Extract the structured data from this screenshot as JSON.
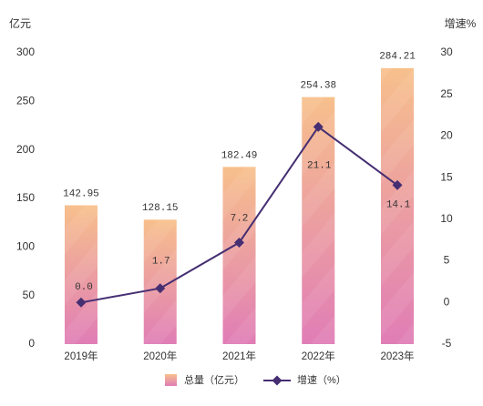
{
  "chart_data": {
    "type": "bar",
    "categories": [
      "2019年",
      "2020年",
      "2021年",
      "2022年",
      "2023年"
    ],
    "series": [
      {
        "name": "总量（亿元）",
        "type": "bar",
        "y_axis": "left",
        "values": [
          142.95,
          128.15,
          182.49,
          254.38,
          284.21
        ]
      },
      {
        "name": "增速（%）",
        "type": "line",
        "y_axis": "right",
        "values": [
          0.0,
          1.7,
          7.2,
          21.1,
          14.1
        ],
        "labels": [
          "0.0",
          "1.7",
          "7.2",
          "21.1",
          "14.1"
        ]
      }
    ],
    "y_left": {
      "label": "亿元",
      "ticks": [
        0,
        50,
        100,
        150,
        200,
        250,
        300
      ],
      "range": [
        0,
        300
      ]
    },
    "y_right": {
      "label": "增速%",
      "ticks": [
        -5,
        0,
        5,
        10,
        15,
        20,
        25,
        30
      ],
      "range": [
        -5,
        30
      ]
    },
    "grid": false,
    "legend_position": "bottom",
    "colors": {
      "bar_top": "#f7c08c",
      "bar_bottom": "#e07db6",
      "line": "#452e72",
      "text": "#333333"
    }
  }
}
